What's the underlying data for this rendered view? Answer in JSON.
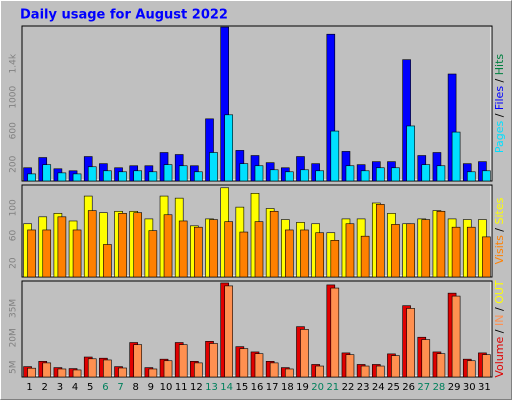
{
  "chart_data": [
    {
      "type": "bar",
      "title": "Daily usage for August 2022",
      "ylim": [
        0,
        1850
      ],
      "yticks": [
        200,
        600,
        1000,
        {
          "value": 1400,
          "label": "1.4k"
        }
      ],
      "grid": false,
      "series": [
        {
          "name": "Pages",
          "color": "#00e0ff",
          "values": [
            85,
            195,
            97,
            85,
            170,
            122,
            110,
            122,
            110,
            195,
            182,
            110,
            340,
            790,
            207,
            182,
            134,
            110,
            134,
            122,
            596,
            182,
            122,
            158,
            158,
            657,
            195,
            182,
            584,
            110,
            122
          ]
        },
        {
          "name": "Files",
          "color": "#0000ff",
          "values": [
            158,
            280,
            146,
            122,
            292,
            207,
            158,
            182,
            182,
            340,
            316,
            182,
            742,
            1837,
            365,
            304,
            219,
            158,
            292,
            207,
            1752,
            353,
            195,
            231,
            231,
            1448,
            304,
            340,
            1277,
            207,
            231
          ]
        },
        {
          "name": "Hits",
          "color": "#008040",
          "values": [
            null,
            null,
            null,
            null,
            null,
            null,
            null,
            null,
            null,
            null,
            null,
            null,
            null,
            null,
            null,
            null,
            null,
            null,
            null,
            null,
            null,
            null,
            null,
            null,
            null,
            null,
            null,
            null,
            null,
            null,
            null
          ]
        }
      ]
    },
    {
      "type": "bar",
      "ylim": [
        0,
        133
      ],
      "yticks": [
        20,
        60,
        100
      ],
      "grid": false,
      "series": [
        {
          "name": "Visits",
          "color": "#ff8000",
          "values": [
            68,
            68,
            87,
            68,
            96,
            47,
            92,
            93,
            67,
            90,
            81,
            72,
            83,
            80,
            65,
            80,
            95,
            68,
            68,
            64,
            53,
            77,
            59,
            105,
            76,
            77,
            83,
            95,
            72,
            72,
            58
          ]
        },
        {
          "name": "Sites",
          "color": "#ffff00",
          "values": [
            77,
            87,
            92,
            81,
            117,
            93,
            95,
            95,
            84,
            117,
            114,
            74,
            84,
            129,
            101,
            121,
            99,
            83,
            79,
            77,
            64,
            84,
            84,
            107,
            92,
            77,
            84,
            96,
            84,
            83,
            83
          ]
        }
      ]
    },
    {
      "type": "bar",
      "ylim": [
        0,
        49
      ],
      "yticks": [
        {
          "value": 5,
          "label": "5M"
        },
        {
          "value": 20,
          "label": "20M"
        },
        {
          "value": 35,
          "label": "35M"
        }
      ],
      "grid": false,
      "categories": [
        "1",
        "2",
        "3",
        "4",
        "5",
        "6",
        "7",
        "8",
        "9",
        "10",
        "11",
        "12",
        "13",
        "14",
        "15",
        "16",
        "17",
        "18",
        "19",
        "20",
        "21",
        "22",
        "23",
        "24",
        "25",
        "26",
        "27",
        "28",
        "29",
        "30",
        "31"
      ],
      "category_colors": [
        "#000000",
        "#000000",
        "#000000",
        "#000000",
        "#000000",
        "#00805c",
        "#00805c",
        "#000000",
        "#000000",
        "#000000",
        "#000000",
        "#000000",
        "#00805c",
        "#00805c",
        "#000000",
        "#000000",
        "#000000",
        "#000000",
        "#000000",
        "#00805c",
        "#00805c",
        "#000000",
        "#000000",
        "#000000",
        "#000000",
        "#000000",
        "#00805c",
        "#00805c",
        "#000000",
        "#000000",
        "#000000"
      ],
      "series": [
        {
          "name": "Volume",
          "color": "#e00000",
          "values": [
            5.3,
            8,
            4.8,
            4.3,
            10.2,
            9.6,
            5.3,
            17.6,
            4.8,
            9.1,
            17.6,
            8,
            18.2,
            48,
            15.5,
            12.8,
            8,
            4.8,
            25.7,
            6.4,
            47,
            12.3,
            6.4,
            6.4,
            11.8,
            36.4,
            20.3,
            12.8,
            42.8,
            9.1,
            12.3
          ]
        },
        {
          "name": "IN",
          "color": "#ff9050",
          "values": [
            4.5,
            7.2,
            4.1,
            3.6,
            9.3,
            8.7,
            4.6,
            16.5,
            4.1,
            8.3,
            16.5,
            7.2,
            17.1,
            46.5,
            14.5,
            11.9,
            7.2,
            4.1,
            24.3,
            5.6,
            45.4,
            11.4,
            5.6,
            5.6,
            10.9,
            35,
            19.1,
            11.9,
            41.3,
            8.3,
            11.4
          ]
        },
        {
          "name": "OUT",
          "color": "#ffff00",
          "values": [
            null,
            null,
            null,
            null,
            null,
            null,
            null,
            null,
            null,
            null,
            null,
            null,
            null,
            null,
            null,
            null,
            null,
            null,
            null,
            null,
            null,
            null,
            null,
            null,
            null,
            null,
            null,
            null,
            null,
            null,
            null
          ]
        }
      ]
    }
  ]
}
